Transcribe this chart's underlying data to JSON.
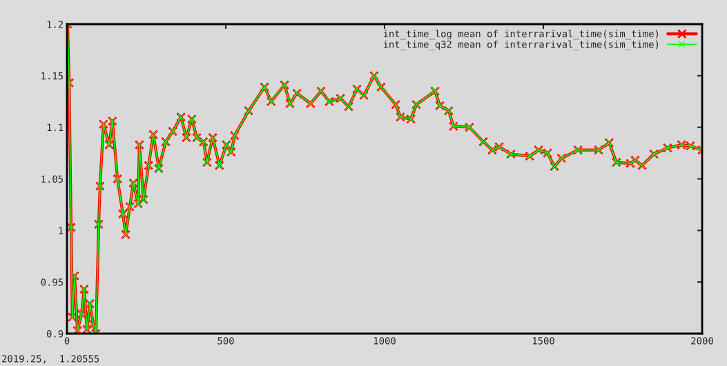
{
  "chart_data": {
    "type": "line",
    "x": [
      2,
      7,
      13,
      17,
      24,
      33,
      46,
      54,
      63,
      72,
      83,
      91,
      100,
      104,
      115,
      133,
      143,
      159,
      176,
      185,
      198,
      209,
      224,
      228,
      241,
      257,
      272,
      289,
      311,
      333,
      359,
      376,
      393,
      409,
      430,
      441,
      459,
      480,
      502,
      517,
      528,
      572,
      622,
      643,
      685,
      702,
      724,
      767,
      800,
      826,
      861,
      887,
      913,
      935,
      967,
      989,
      1035,
      1050,
      1083,
      1100,
      1159,
      1174,
      1202,
      1217,
      1267,
      1311,
      1339,
      1361,
      1398,
      1457,
      1485,
      1513,
      1535,
      1557,
      1609,
      1674,
      1707,
      1730,
      1774,
      1789,
      1811,
      1848,
      1891,
      1935,
      1963,
      2000
    ],
    "series": [
      {
        "name": "int_time_log mean of interrarival_time(sim_time)",
        "color": "#ff0000",
        "marker": "cross",
        "values": [
          1.2,
          1.143,
          1.003,
          0.916,
          0.956,
          0.903,
          0.919,
          0.943,
          0.904,
          0.929,
          0.909,
          0.9,
          1.006,
          1.043,
          1.103,
          1.083,
          1.106,
          1.05,
          1.016,
          0.996,
          1.023,
          1.046,
          1.026,
          1.083,
          1.03,
          1.063,
          1.093,
          1.06,
          1.086,
          1.096,
          1.11,
          1.09,
          1.108,
          1.09,
          1.086,
          1.066,
          1.09,
          1.063,
          1.083,
          1.076,
          1.092,
          1.116,
          1.139,
          1.125,
          1.141,
          1.123,
          1.133,
          1.123,
          1.135,
          1.125,
          1.128,
          1.12,
          1.137,
          1.131,
          1.15,
          1.139,
          1.122,
          1.11,
          1.108,
          1.122,
          1.135,
          1.121,
          1.116,
          1.101,
          1.1,
          1.086,
          1.078,
          1.081,
          1.074,
          1.072,
          1.078,
          1.075,
          1.062,
          1.07,
          1.078,
          1.078,
          1.085,
          1.066,
          1.065,
          1.068,
          1.063,
          1.074,
          1.08,
          1.083,
          1.082,
          1.078
        ]
      },
      {
        "name": "int_time_q32 mean of interrarival_time(sim_time)",
        "color": "#00ff00",
        "marker": "cross",
        "values": [
          1.2,
          1.143,
          1.003,
          0.916,
          0.956,
          0.903,
          0.919,
          0.943,
          0.904,
          0.929,
          0.909,
          0.9,
          1.006,
          1.043,
          1.103,
          1.083,
          1.106,
          1.05,
          1.016,
          0.996,
          1.023,
          1.046,
          1.026,
          1.083,
          1.03,
          1.063,
          1.093,
          1.06,
          1.086,
          1.096,
          1.11,
          1.09,
          1.108,
          1.09,
          1.086,
          1.066,
          1.09,
          1.063,
          1.083,
          1.076,
          1.092,
          1.116,
          1.139,
          1.125,
          1.141,
          1.123,
          1.133,
          1.123,
          1.135,
          1.125,
          1.128,
          1.12,
          1.137,
          1.131,
          1.15,
          1.139,
          1.122,
          1.11,
          1.108,
          1.122,
          1.135,
          1.121,
          1.116,
          1.101,
          1.1,
          1.086,
          1.078,
          1.081,
          1.074,
          1.072,
          1.078,
          1.075,
          1.062,
          1.07,
          1.078,
          1.078,
          1.085,
          1.066,
          1.065,
          1.068,
          1.063,
          1.074,
          1.08,
          1.083,
          1.082,
          1.078
        ]
      }
    ],
    "xlim": [
      0,
      2000
    ],
    "xticks": [
      0,
      500,
      1000,
      1500,
      2000
    ],
    "ylim": [
      0.9,
      1.2
    ],
    "yticks": [
      0.9,
      0.95,
      1,
      1.05,
      1.1,
      1.15,
      1.2
    ],
    "grid": false,
    "legend": "top right",
    "line_style": "solid",
    "annotations": [
      "2019.25,  1.20555"
    ]
  }
}
